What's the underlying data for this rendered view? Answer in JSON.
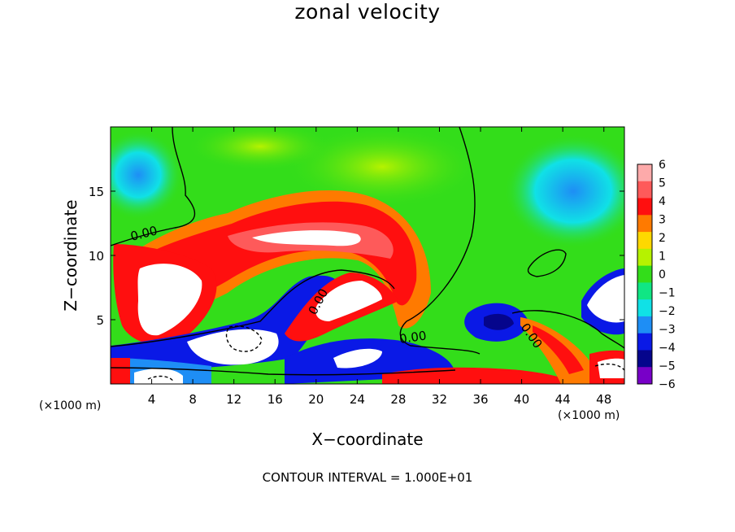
{
  "chart_data": {
    "type": "heatmap",
    "title": "zonal velocity",
    "xlabel": "X−coordinate",
    "ylabel": "Z−coordinate",
    "x_unit_left": "(×1000 m)",
    "x_unit_right": "(×1000 m)",
    "xlim": [
      0,
      50
    ],
    "ylim": [
      0,
      20
    ],
    "x_ticks": [
      "4",
      "8",
      "12",
      "16",
      "20",
      "24",
      "28",
      "32",
      "36",
      "40",
      "44",
      "48"
    ],
    "x_tick_values": [
      4,
      8,
      12,
      16,
      20,
      24,
      28,
      32,
      36,
      40,
      44,
      48
    ],
    "y_ticks": [
      "5",
      "10",
      "15"
    ],
    "y_tick_values": [
      5,
      10,
      15
    ],
    "colorbar": {
      "levels": [
        "6",
        "5",
        "4",
        "3",
        "2",
        "1",
        "0",
        "−1",
        "−2",
        "−3",
        "−4",
        "−5",
        "−6"
      ],
      "colors": [
        "#fdaaaa",
        "#fe5a5a",
        "#ff0f0f",
        "#ff7a00",
        "#fed800",
        "#b6f200",
        "#33dd1a",
        "#10e684",
        "#10e1e6",
        "#1e8ef5",
        "#0a19e6",
        "#05058c",
        "#7800c8"
      ]
    },
    "contour_labels": [
      "0.00",
      "0.00",
      "0.00",
      "0.00"
    ],
    "contour_interval_text": "CONTOUR INTERVAL = 1.000E+01"
  }
}
